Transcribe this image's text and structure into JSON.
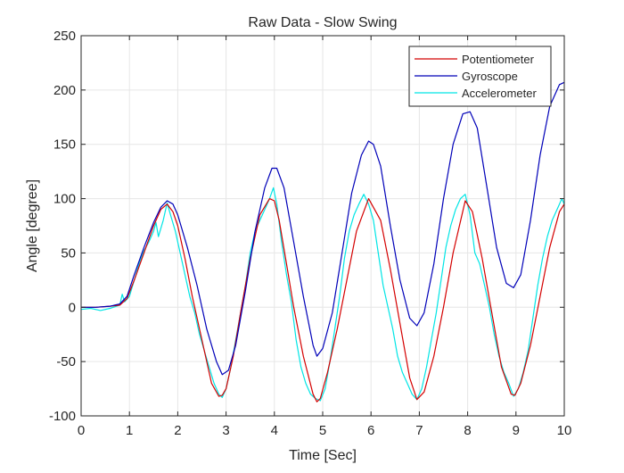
{
  "chart_data": {
    "type": "line",
    "title": "Raw Data - Slow Swing",
    "xlabel": "Time [Sec]",
    "ylabel": "Angle [degree]",
    "xlim": [
      0,
      10
    ],
    "ylim": [
      -100,
      250
    ],
    "xticks": [
      0,
      1,
      2,
      3,
      4,
      5,
      6,
      7,
      8,
      9,
      10
    ],
    "yticks": [
      -100,
      -50,
      0,
      50,
      100,
      150,
      200,
      250
    ],
    "grid": true,
    "legend_position": "top-right",
    "series": [
      {
        "name": "Potentiometer",
        "color": "#d40000",
        "x": [
          0,
          0.3,
          0.6,
          0.8,
          0.95,
          1.1,
          1.3,
          1.5,
          1.65,
          1.78,
          1.9,
          2.0,
          2.15,
          2.3,
          2.5,
          2.7,
          2.85,
          2.92,
          3.0,
          3.15,
          3.3,
          3.5,
          3.7,
          3.9,
          4.0,
          4.1,
          4.25,
          4.4,
          4.6,
          4.8,
          4.88,
          4.95,
          5.1,
          5.3,
          5.5,
          5.7,
          5.95,
          6.2,
          6.4,
          6.6,
          6.8,
          6.95,
          7.1,
          7.3,
          7.5,
          7.7,
          7.95,
          8.1,
          8.3,
          8.5,
          8.7,
          8.9,
          8.98,
          9.1,
          9.3,
          9.5,
          9.7,
          9.9,
          10.0
        ],
        "y": [
          0,
          0,
          1,
          2,
          8,
          25,
          50,
          75,
          90,
          95,
          88,
          75,
          45,
          10,
          -30,
          -70,
          -82,
          -81,
          -75,
          -45,
          -5,
          45,
          85,
          100,
          98,
          80,
          40,
          0,
          -45,
          -80,
          -87,
          -84,
          -60,
          -20,
          25,
          70,
          100,
          80,
          35,
          -15,
          -65,
          -85,
          -78,
          -45,
          0,
          50,
          98,
          88,
          45,
          -5,
          -55,
          -80,
          -81,
          -70,
          -35,
          10,
          55,
          88,
          95
        ]
      },
      {
        "name": "Gyroscope",
        "color": "#0000b8",
        "x": [
          0,
          0.3,
          0.6,
          0.8,
          0.95,
          1.1,
          1.3,
          1.5,
          1.65,
          1.78,
          1.9,
          2.0,
          2.2,
          2.4,
          2.6,
          2.8,
          2.92,
          3.05,
          3.2,
          3.4,
          3.6,
          3.8,
          3.95,
          4.05,
          4.2,
          4.4,
          4.6,
          4.8,
          4.88,
          5.0,
          5.2,
          5.4,
          5.6,
          5.8,
          5.95,
          6.05,
          6.2,
          6.4,
          6.6,
          6.8,
          6.95,
          7.1,
          7.3,
          7.5,
          7.7,
          7.9,
          8.05,
          8.2,
          8.4,
          8.6,
          8.8,
          8.95,
          9.1,
          9.3,
          9.5,
          9.7,
          9.9,
          10.0
        ],
        "y": [
          0,
          0,
          1,
          3,
          10,
          30,
          55,
          78,
          92,
          98,
          95,
          85,
          55,
          20,
          -20,
          -50,
          -62,
          -58,
          -35,
          15,
          70,
          110,
          128,
          128,
          110,
          60,
          10,
          -35,
          -45,
          -38,
          -5,
          50,
          105,
          140,
          153,
          150,
          130,
          75,
          25,
          -10,
          -17,
          -5,
          40,
          100,
          150,
          178,
          180,
          165,
          110,
          55,
          22,
          18,
          30,
          80,
          140,
          185,
          205,
          207
        ]
      },
      {
        "name": "Accelerometer",
        "color": "#00e5e5",
        "x": [
          0,
          0.2,
          0.4,
          0.6,
          0.8,
          0.85,
          0.9,
          1.0,
          1.1,
          1.2,
          1.3,
          1.4,
          1.5,
          1.55,
          1.6,
          1.7,
          1.78,
          1.85,
          1.95,
          2.05,
          2.15,
          2.25,
          2.35,
          2.45,
          2.55,
          2.65,
          2.75,
          2.85,
          2.92,
          3.0,
          3.1,
          3.2,
          3.3,
          3.4,
          3.5,
          3.6,
          3.7,
          3.8,
          3.9,
          3.98,
          4.05,
          4.15,
          4.25,
          4.35,
          4.45,
          4.55,
          4.65,
          4.75,
          4.85,
          4.95,
          5.05,
          5.15,
          5.25,
          5.35,
          5.45,
          5.55,
          5.65,
          5.75,
          5.85,
          5.95,
          6.05,
          6.15,
          6.25,
          6.35,
          6.45,
          6.55,
          6.65,
          6.75,
          6.85,
          6.95,
          7.05,
          7.15,
          7.25,
          7.35,
          7.45,
          7.55,
          7.65,
          7.75,
          7.85,
          7.95,
          8.05,
          8.15,
          8.25,
          8.35,
          8.45,
          8.55,
          8.65,
          8.75,
          8.85,
          8.95,
          9.05,
          9.15,
          9.25,
          9.35,
          9.45,
          9.55,
          9.65,
          9.75,
          9.85,
          9.95,
          10.0
        ],
        "y": [
          -2,
          -1,
          -3,
          -1,
          2,
          12,
          5,
          10,
          25,
          40,
          52,
          60,
          70,
          78,
          65,
          80,
          96,
          85,
          70,
          50,
          30,
          10,
          -5,
          -25,
          -40,
          -55,
          -70,
          -80,
          -83,
          -75,
          -55,
          -30,
          -5,
          20,
          50,
          70,
          80,
          90,
          100,
          110,
          95,
          60,
          30,
          5,
          -30,
          -55,
          -70,
          -80,
          -84,
          -86,
          -75,
          -50,
          -20,
          10,
          45,
          70,
          85,
          95,
          104,
          95,
          80,
          50,
          20,
          0,
          -20,
          -45,
          -60,
          -70,
          -80,
          -85,
          -75,
          -55,
          -30,
          -5,
          25,
          55,
          75,
          90,
          100,
          104,
          85,
          50,
          40,
          20,
          0,
          -25,
          -45,
          -60,
          -70,
          -82,
          -75,
          -60,
          -40,
          -10,
          20,
          45,
          65,
          80,
          90,
          100,
          95
        ]
      }
    ]
  }
}
